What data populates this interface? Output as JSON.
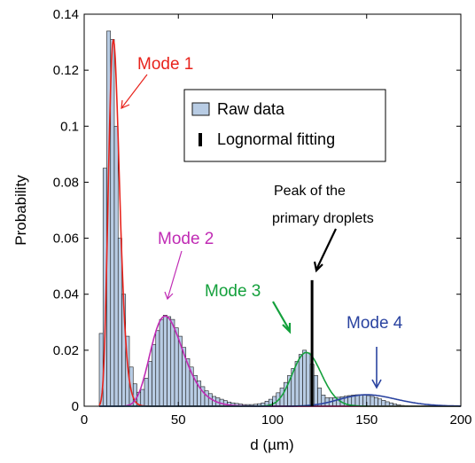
{
  "chart_data": {
    "type": "bar",
    "xlabel": "d (µm)",
    "ylabel": "Probability",
    "xlim": [
      0,
      200
    ],
    "ylim": [
      0,
      0.14
    ],
    "xticks": [
      "0",
      "50",
      "100",
      "150",
      "200"
    ],
    "yticks": [
      "0",
      "0.02",
      "0.04",
      "0.06",
      "0.08",
      "0.1",
      "0.12",
      "0.14"
    ],
    "legend": {
      "placement": "top-center",
      "entries": [
        "Raw data",
        "Lognormal fitting"
      ]
    },
    "colors": {
      "bar_fill": "#b8cce4",
      "bar_edge": "#1a1a1a",
      "mode1": "#e8231c",
      "mode2": "#c02bb4",
      "mode3": "#14a03c",
      "mode4": "#2a43a0",
      "fitting_total": "#000000"
    },
    "annotations": {
      "mode1": "Mode 1",
      "mode2": "Mode 2",
      "mode3": "Mode 3",
      "mode4": "Mode 4",
      "peak_line1": "Peak of the",
      "peak_line2": "primary droplets"
    },
    "peak_marker": {
      "x": 121,
      "y_top": 0.045
    },
    "histogram": {
      "bin_width": 2,
      "bin_start": 8,
      "values": [
        0.026,
        0.085,
        0.134,
        0.131,
        0.1,
        0.06,
        0.04,
        0.025,
        0.014,
        0.008,
        0.005,
        0.006,
        0.01,
        0.016,
        0.022,
        0.027,
        0.031,
        0.0325,
        0.032,
        0.031,
        0.028,
        0.025,
        0.021,
        0.017,
        0.014,
        0.011,
        0.009,
        0.007,
        0.0055,
        0.0045,
        0.0035,
        0.003,
        0.0025,
        0.002,
        0.0015,
        0.0012,
        0.001,
        0.0008,
        0.0006,
        0.0006,
        0.0006,
        0.0007,
        0.0009,
        0.0012,
        0.0018,
        0.0025,
        0.0035,
        0.0048,
        0.0065,
        0.0085,
        0.011,
        0.0135,
        0.016,
        0.0185,
        0.02,
        0.019,
        0.015,
        0.011,
        0.0065,
        0.004,
        0.003,
        0.003,
        0.003,
        0.0032,
        0.0034,
        0.0036,
        0.0038,
        0.004,
        0.0041,
        0.0041,
        0.004,
        0.0038,
        0.0035,
        0.0031,
        0.0026,
        0.0021,
        0.0016,
        0.0012,
        0.0008,
        0.0005,
        0.0003,
        0.0002,
        0.0001,
        0.0001,
        0.0001,
        0.0001
      ]
    },
    "fits": [
      {
        "name": "Mode 1",
        "amplitude": 0.131,
        "median": 15.5,
        "sigma": 0.19
      },
      {
        "name": "Mode 2",
        "amplitude": 0.0322,
        "median": 43,
        "sigma": 0.2
      },
      {
        "name": "Mode 3",
        "amplitude": 0.0192,
        "median": 118,
        "sigma": 0.065
      },
      {
        "name": "Mode 4",
        "amplitude": 0.0041,
        "median": 150,
        "sigma": 0.1
      }
    ]
  }
}
